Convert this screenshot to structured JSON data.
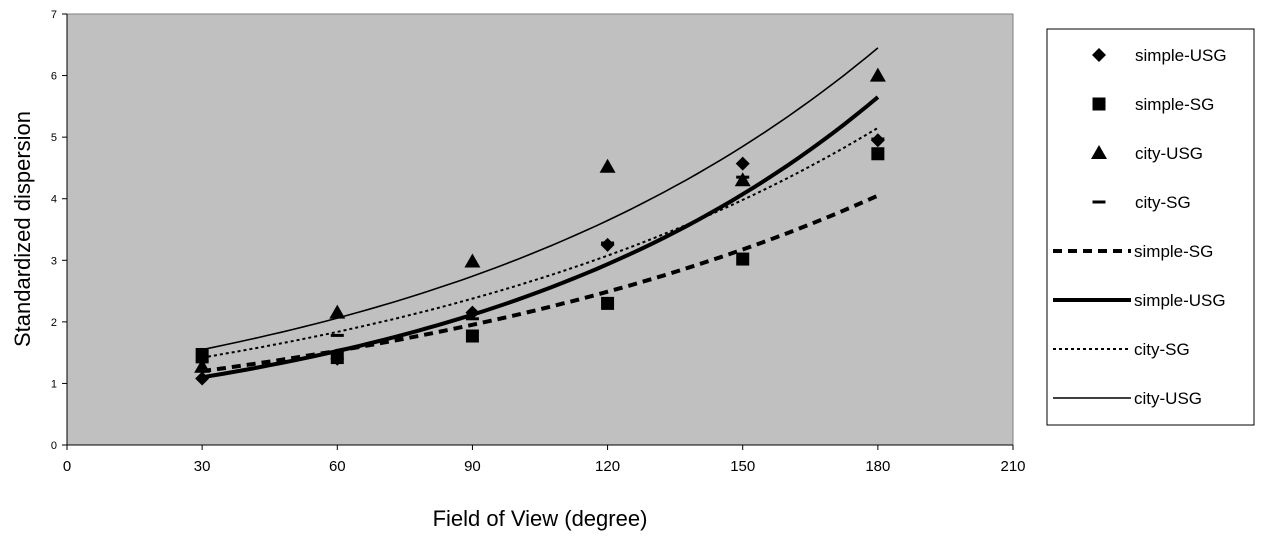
{
  "chart_data": {
    "type": "scatter",
    "title": "",
    "xlabel": "Field of View (degree)",
    "ylabel": "Standardized dispersion",
    "xlim": [
      0,
      210
    ],
    "ylim": [
      0,
      7
    ],
    "x_ticks": [
      0,
      30,
      60,
      90,
      120,
      150,
      180,
      210
    ],
    "y_ticks": [
      0,
      1,
      2,
      3,
      4,
      5,
      6,
      7
    ],
    "plot_background": "#c0c0c0",
    "grid": false,
    "legend_position": "right",
    "series": [
      {
        "name": "simple-USG",
        "kind": "points",
        "marker": "diamond",
        "x": [
          30,
          60,
          90,
          120,
          150,
          180
        ],
        "y": [
          1.08,
          1.4,
          2.15,
          3.25,
          4.57,
          4.95
        ]
      },
      {
        "name": "simple-SG",
        "kind": "points",
        "marker": "square",
        "x": [
          30,
          60,
          90,
          120,
          150,
          180
        ],
        "y": [
          1.47,
          1.42,
          1.77,
          2.3,
          3.02,
          4.73
        ]
      },
      {
        "name": "city-USG",
        "kind": "points",
        "marker": "triangle",
        "x": [
          30,
          60,
          90,
          120,
          150,
          180
        ],
        "y": [
          1.27,
          2.15,
          2.98,
          4.52,
          4.3,
          6.0
        ]
      },
      {
        "name": "city-SG",
        "kind": "points",
        "marker": "dash",
        "x": [
          30,
          60,
          90,
          120,
          150,
          180
        ],
        "y": [
          1.35,
          1.78,
          2.05,
          3.28,
          4.35,
          4.97
        ]
      },
      {
        "name": "simple-SG",
        "kind": "trend",
        "style": "thick-dashed",
        "x": [
          30,
          180
        ],
        "y": [
          1.2,
          4.05
        ]
      },
      {
        "name": "simple-USG",
        "kind": "trend",
        "style": "thick-solid",
        "x": [
          30,
          180
        ],
        "y": [
          1.1,
          5.65
        ]
      },
      {
        "name": "city-SG",
        "kind": "trend",
        "style": "thin-dotted",
        "x": [
          30,
          180
        ],
        "y": [
          1.42,
          5.15
        ]
      },
      {
        "name": "city-USG",
        "kind": "trend",
        "style": "thin-solid",
        "x": [
          30,
          180
        ],
        "y": [
          1.55,
          6.45
        ]
      }
    ]
  }
}
